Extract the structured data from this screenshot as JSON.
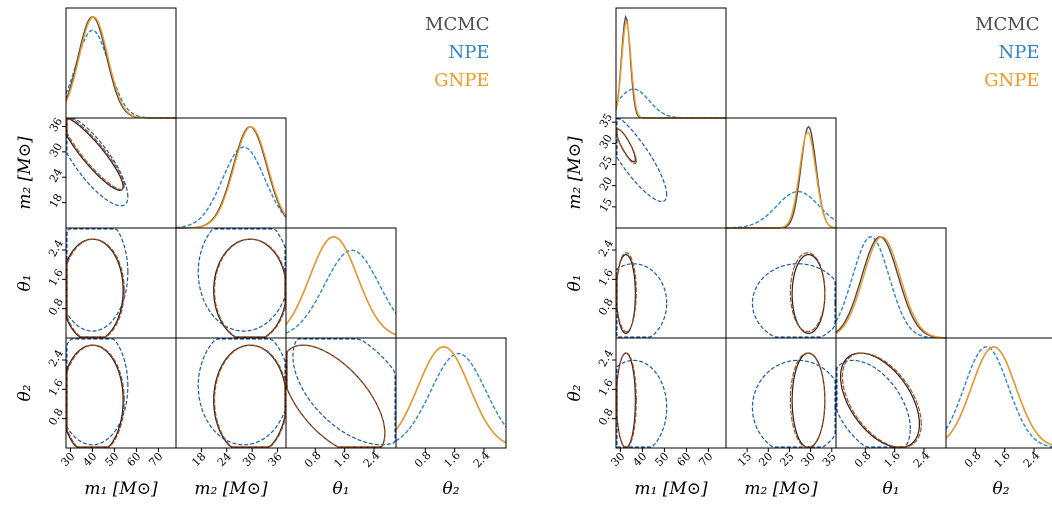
{
  "legend": {
    "mcmc": "MCMC",
    "npe": "NPE",
    "gnpe": "GNPE"
  },
  "colors": {
    "mcmc": "#4d4d4d",
    "npe": "#2f86c8",
    "gnpe": "#f39a22",
    "mcmc_contour": "#222222",
    "gnpe_contour": "#a8501e",
    "npe_contour": "#1a5aa8"
  },
  "chart_data": [
    {
      "type": "corner",
      "parameters": [
        "m1",
        "m2",
        "theta1",
        "theta2"
      ],
      "axis_labels": {
        "m1": "m₁ [M⊙]",
        "m2": "m₂ [M⊙]",
        "theta1": "θ₁",
        "theta2": "θ₂"
      },
      "ranges": {
        "m1": [
          28,
          78
        ],
        "m2": [
          12,
          38
        ],
        "theta1": [
          0,
          3.0
        ],
        "theta2": [
          0,
          3.0
        ]
      },
      "ticks": {
        "m1": [
          "30",
          "40",
          "50",
          "60",
          "70"
        ],
        "m2": [
          "18",
          "24",
          "30",
          "36"
        ],
        "theta1": [
          "0.8",
          "1.6",
          "2.4"
        ],
        "theta2": [
          "0.8",
          "1.6",
          "2.4"
        ]
      },
      "posteriors": {
        "mcmc": {
          "m1": {
            "mean": 40,
            "sd": 6.5
          },
          "m2": {
            "mean": 29.5,
            "sd": 4.0
          },
          "theta1": {
            "mean": 1.3,
            "sd": 0.65
          },
          "theta2": {
            "mean": 1.3,
            "sd": 0.7
          },
          "corr_m1_m2": -0.9,
          "corr_theta1_theta2": -0.6
        },
        "npe": {
          "m1": {
            "mean": 40,
            "sd": 7.5
          },
          "m2": {
            "mean": 28,
            "sd": 5.0
          },
          "theta1": {
            "mean": 1.8,
            "sd": 0.75
          },
          "theta2": {
            "mean": 1.7,
            "sd": 0.75
          },
          "corr_m1_m2": -0.8,
          "corr_theta1_theta2": -0.5
        },
        "gnpe": {
          "m1": {
            "mean": 40.5,
            "sd": 6.5
          },
          "m2": {
            "mean": 29.7,
            "sd": 4.0
          },
          "theta1": {
            "mean": 1.3,
            "sd": 0.65
          },
          "theta2": {
            "mean": 1.3,
            "sd": 0.7
          },
          "corr_m1_m2": -0.9,
          "corr_theta1_theta2": -0.6
        }
      }
    },
    {
      "type": "corner",
      "parameters": [
        "m1",
        "m2",
        "theta1",
        "theta2"
      ],
      "axis_labels": {
        "m1": "m₁ [M⊙]",
        "m2": "m₂ [M⊙]",
        "theta1": "θ₁",
        "theta2": "θ₂"
      },
      "ranges": {
        "m1": [
          28,
          78
        ],
        "m2": [
          10,
          36
        ],
        "theta1": [
          0,
          3.0
        ],
        "theta2": [
          0,
          3.0
        ]
      },
      "ticks": {
        "m1": [
          "30",
          "40",
          "50",
          "60",
          "70"
        ],
        "m2": [
          "15",
          "20",
          "25",
          "30",
          "35"
        ],
        "theta1": [
          "0.8",
          "1.6",
          "2.4"
        ],
        "theta2": [
          "0.8",
          "1.6",
          "2.4"
        ]
      },
      "posteriors": {
        "mcmc": {
          "m1": {
            "mean": 32.5,
            "sd": 2.0
          },
          "m2": {
            "mean": 29.5,
            "sd": 1.8
          },
          "theta1": {
            "mean": 1.2,
            "sd": 0.5
          },
          "theta2": {
            "mean": 1.3,
            "sd": 0.6
          },
          "corr_m1_m2": -0.85,
          "corr_theta1_theta2": -0.5
        },
        "npe": {
          "m1": {
            "mean": 36,
            "sd": 7.0
          },
          "m2": {
            "mean": 27,
            "sd": 5.0
          },
          "theta1": {
            "mean": 0.95,
            "sd": 0.5
          },
          "theta2": {
            "mean": 1.1,
            "sd": 0.6
          },
          "corr_m1_m2": -0.85,
          "corr_theta1_theta2": -0.45
        },
        "gnpe": {
          "m1": {
            "mean": 32.7,
            "sd": 2.1
          },
          "m2": {
            "mean": 29.3,
            "sd": 1.9
          },
          "theta1": {
            "mean": 1.25,
            "sd": 0.5
          },
          "theta2": {
            "mean": 1.3,
            "sd": 0.6
          },
          "corr_m1_m2": -0.85,
          "corr_theta1_theta2": -0.5
        }
      }
    }
  ]
}
